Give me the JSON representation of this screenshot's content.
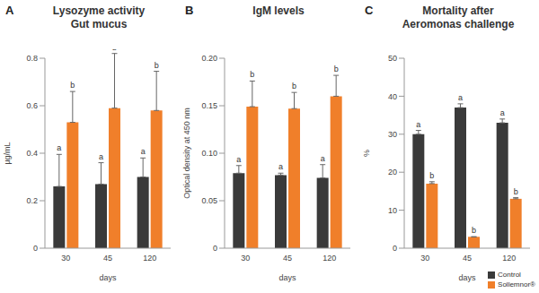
{
  "chart_data": [
    {
      "type": "bar",
      "panel": "A",
      "title": "Lysozyme activity",
      "subtitle": "Gut mucus",
      "x_label": "days",
      "y_label": "µg/mL",
      "categories": [
        "30",
        "45",
        "120"
      ],
      "ylim": [
        0,
        0.8
      ],
      "yticks": [
        0,
        0.2,
        0.4,
        0.6,
        0.8
      ],
      "series": [
        {
          "name": "Control",
          "color": "#3a3a3a",
          "values": [
            0.26,
            0.27,
            0.3
          ],
          "errors": [
            0.135,
            0.09,
            0.08
          ],
          "annotations": [
            "a",
            "a",
            "a"
          ]
        },
        {
          "name": "Sollemnor®",
          "color": "#f07f2a",
          "values": [
            0.53,
            0.59,
            0.58
          ],
          "errors": [
            0.13,
            0.23,
            0.165
          ],
          "annotations": [
            "b",
            "b",
            "b"
          ]
        }
      ]
    },
    {
      "type": "bar",
      "panel": "B",
      "title": "IgM levels",
      "x_label": "days",
      "y_label": "Optical density at 450 nm",
      "categories": [
        "30",
        "45",
        "120"
      ],
      "ylim": [
        0,
        0.2
      ],
      "yticks": [
        0,
        0.05,
        {
          "value": 0.1,
          "label": "0.10"
        },
        0.15,
        {
          "value": 0.2,
          "label": "0.20"
        }
      ],
      "series": [
        {
          "name": "Control",
          "color": "#3a3a3a",
          "values": [
            0.079,
            0.077,
            0.074
          ],
          "errors": [
            0.008,
            0.002,
            0.014
          ],
          "annotations": [
            "a",
            "a",
            "a"
          ]
        },
        {
          "name": "Sollemnor®",
          "color": "#f07f2a",
          "values": [
            0.149,
            0.147,
            0.16
          ],
          "errors": [
            0.027,
            0.017,
            0.022
          ],
          "annotations": [
            "b",
            "b",
            "b"
          ]
        }
      ]
    },
    {
      "type": "bar",
      "panel": "C",
      "title": "Mortality after",
      "subtitle": "Aeromonas challenge",
      "x_label": "days",
      "y_label": "%",
      "categories": [
        "30",
        "45",
        "120"
      ],
      "ylim": [
        0,
        50
      ],
      "yticks": [
        0,
        10,
        20,
        30,
        40,
        50
      ],
      "legend": "lower right",
      "series": [
        {
          "name": "Control",
          "color": "#3a3a3a",
          "values": [
            30,
            37,
            33
          ],
          "errors": [
            1,
            1,
            1
          ],
          "annotations": [
            "a",
            "a",
            "a"
          ]
        },
        {
          "name": "Sollemnor®",
          "color": "#f07f2a",
          "values": [
            17,
            3,
            13
          ],
          "errors": [
            0.5,
            0,
            0.3
          ],
          "annotations": [
            "b",
            "b",
            "b"
          ]
        }
      ]
    }
  ]
}
